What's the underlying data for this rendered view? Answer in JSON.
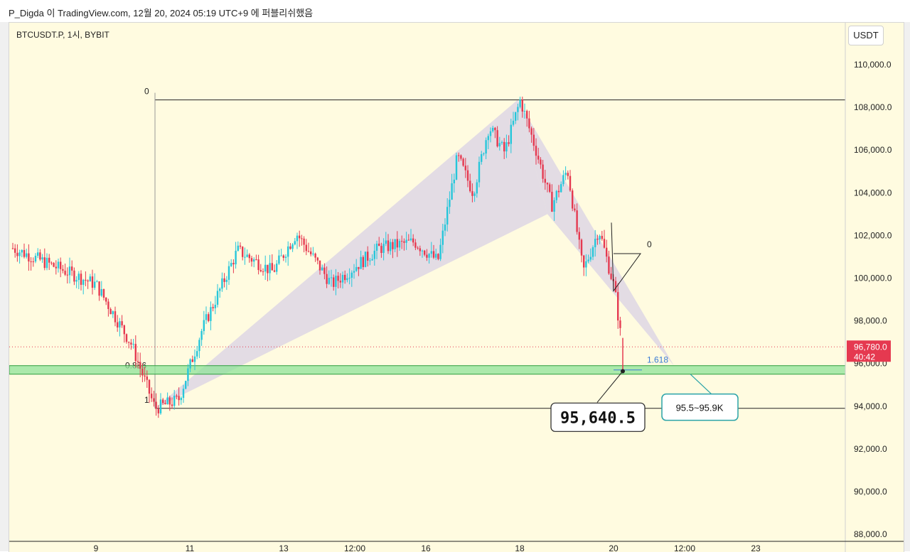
{
  "caption": "P_Digda 이 TradingView.com, 12월 20, 2024 05:19 UTC+9 에 퍼블리쉬했음",
  "symbol": "BTCUSDT.P, 1시, BYBIT",
  "currency": "USDT",
  "colors": {
    "background": "#fffbe0",
    "up_candle": "#26c6da",
    "down_candle": "#e53950",
    "pattern_fill": "#d9d2e6",
    "zone_fill": "#8fe39a",
    "zone_border": "#2e9e3e",
    "callout_border": "#2aa3a8",
    "price_tag": "#e53950",
    "fib_label": "#3a7bd5"
  },
  "chart_data": {
    "type": "candlestick",
    "y_axis": {
      "ticks": [
        "110,000.0",
        "108,000.0",
        "106,000.0",
        "104,000.0",
        "102,000.0",
        "100,000.0",
        "98,000.0",
        "96,000.0",
        "94,000.0",
        "92,000.0",
        "90,000.0",
        "88,000.0"
      ],
      "range": [
        87500,
        111700
      ]
    },
    "x_axis": {
      "ticks": [
        "9",
        "11",
        "13",
        "12:00",
        "16",
        "18",
        "20",
        "12:00",
        "23"
      ]
    },
    "last_price": {
      "value": "96,780.0",
      "countdown": "40:42"
    },
    "fib_levels": [
      {
        "label": "0",
        "price": 108350
      },
      {
        "label": "0.886",
        "price": 95700
      },
      {
        "label": "1",
        "price": 93900
      }
    ],
    "small_fib": {
      "label_zero": "0",
      "label_ext": "1.618"
    },
    "zone": {
      "low": 95500,
      "high": 95900
    },
    "low_callout": {
      "label": "95,640.5",
      "price": 95640.5
    },
    "zone_callout": {
      "label": "95.5~95.9K"
    },
    "harmonic_points": [
      {
        "date": "Dec 10",
        "price": 93900
      },
      {
        "date": "Dec 17",
        "price": 107800
      },
      {
        "date": "Dec 18",
        "price": 108350
      },
      {
        "date": "Dec 19",
        "price": 103000
      },
      {
        "date": "Dec 21",
        "price": 95900
      }
    ],
    "anchor_points": [
      {
        "date": "Dec 8",
        "price": 101400
      },
      {
        "date": "Dec 9",
        "price": 99700
      },
      {
        "date": "Dec 10",
        "price": 96900
      },
      {
        "date": "Dec 10",
        "price": 93900
      },
      {
        "date": "Dec 11",
        "price": 94300
      },
      {
        "date": "Dec 11",
        "price": 97600
      },
      {
        "date": "Dec 12",
        "price": 101300
      },
      {
        "date": "Dec 13",
        "price": 100300
      },
      {
        "date": "Dec 13",
        "price": 102100
      },
      {
        "date": "Dec 14",
        "price": 99700
      },
      {
        "date": "Dec 15",
        "price": 101400
      },
      {
        "date": "Dec 16",
        "price": 101700
      },
      {
        "date": "Dec 16",
        "price": 100800
      },
      {
        "date": "Dec 17",
        "price": 105700
      },
      {
        "date": "Dec 17",
        "price": 104000
      },
      {
        "date": "Dec 17",
        "price": 107100
      },
      {
        "date": "Dec 18",
        "price": 105900
      },
      {
        "date": "Dec 18",
        "price": 108350
      },
      {
        "date": "Dec 18",
        "price": 106000
      },
      {
        "date": "Dec 19",
        "price": 103400
      },
      {
        "date": "Dec 19",
        "price": 105100
      },
      {
        "date": "Dec 19",
        "price": 100300
      },
      {
        "date": "Dec 20",
        "price": 102300
      },
      {
        "date": "Dec 20",
        "price": 99500
      },
      {
        "date": "Dec 20",
        "price": 96780
      }
    ]
  }
}
